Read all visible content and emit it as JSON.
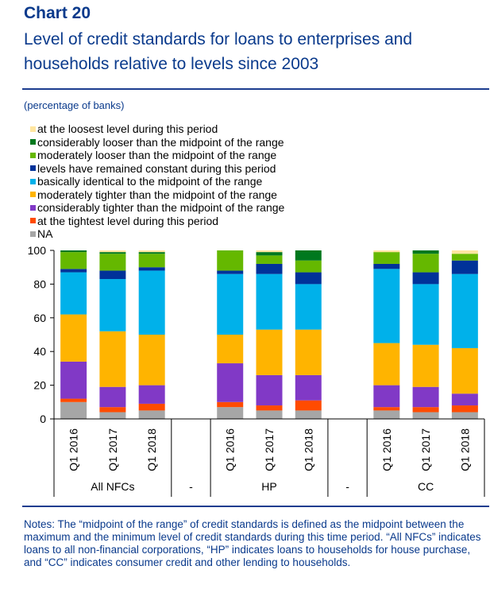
{
  "header": {
    "chart_number": "Chart 20",
    "title": "Level of credit standards for loans to enterprises and households relative to levels since 2003",
    "subtitle": "(percentage of banks)"
  },
  "notes": "Notes: The “midpoint of the range” of credit standards is defined as the midpoint between the maximum and the minimum level of credit standards during this time period. “All NFCs” indicates loans to all non-financial corporations, “HP” indicates loans to households for house purchase, and “CC” indicates consumer credit and other lending to households.",
  "chart_data": {
    "type": "bar",
    "stacked": true,
    "ylim": [
      0,
      100
    ],
    "yticks": [
      0,
      20,
      40,
      60,
      80,
      100
    ],
    "grid": false,
    "legend_position": "top-left",
    "categories": [
      "Q1 2016",
      "Q1 2017",
      "Q1 2018",
      "Q1 2016",
      "Q1 2017",
      "Q1 2018",
      "Q1 2016",
      "Q1 2017",
      "Q1 2018"
    ],
    "groups": [
      {
        "label": "All NFCs",
        "start": 0,
        "end": 2
      },
      {
        "label": "HP",
        "start": 3,
        "end": 5
      },
      {
        "label": "CC",
        "start": 6,
        "end": 8
      }
    ],
    "separator_label": "-",
    "series": [
      {
        "name": "NA",
        "color": "#a6a6a6",
        "values": [
          10,
          4,
          5,
          7,
          5,
          5,
          5,
          4,
          4
        ]
      },
      {
        "name": "at the tightest level during this period",
        "color": "#ff4b00",
        "values": [
          2,
          3,
          4,
          3,
          3,
          6,
          2,
          3,
          4
        ]
      },
      {
        "name": "considerably tighter than the midpoint of the range",
        "color": "#8139c6",
        "values": [
          22,
          12,
          11,
          23,
          18,
          15,
          13,
          12,
          7
        ]
      },
      {
        "name": "moderately tighter than the midpoint of the range",
        "color": "#ffb400",
        "values": [
          28,
          33,
          30,
          17,
          27,
          27,
          25,
          25,
          27
        ]
      },
      {
        "name": "basically identical to the midpoint of the range",
        "color": "#00b1ea",
        "values": [
          25,
          31,
          38,
          36,
          33,
          27,
          44,
          36,
          44
        ]
      },
      {
        "name": "levels have remained constant during this period",
        "color": "#003299",
        "values": [
          2,
          5,
          2,
          2,
          6,
          7,
          3,
          7,
          8
        ]
      },
      {
        "name": "moderately looser than the midpoint of the range",
        "color": "#65b800",
        "values": [
          10,
          10,
          8,
          12,
          5,
          7,
          7,
          11,
          4
        ]
      },
      {
        "name": "considerably looser than the midpoint of the range",
        "color": "#00781e",
        "values": [
          1,
          1,
          1,
          0,
          2,
          6,
          0,
          2,
          0
        ]
      },
      {
        "name": "at the loosest level during this period",
        "color": "#ffe6a0",
        "values": [
          0,
          1,
          1,
          0,
          1,
          0,
          1,
          0,
          2
        ]
      }
    ]
  }
}
